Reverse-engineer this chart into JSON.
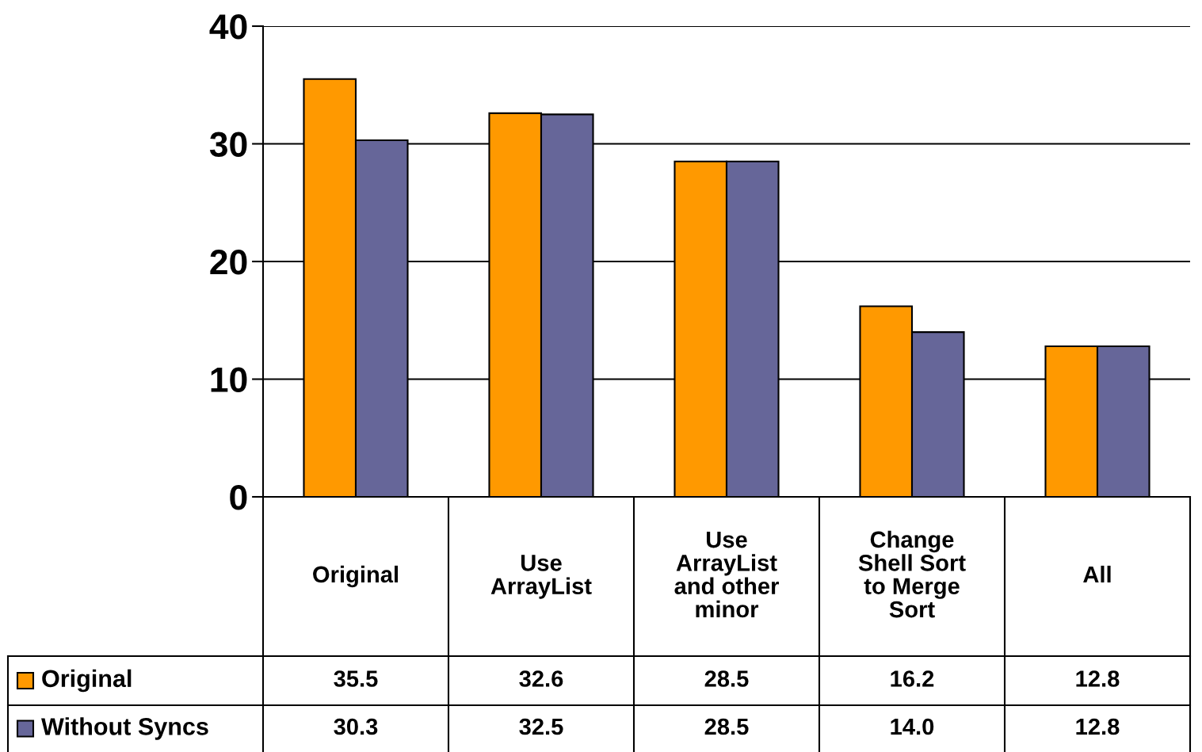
{
  "chart_data": {
    "type": "bar",
    "categories": [
      "Original",
      "Use ArrayList",
      "Use ArrayList and other minor",
      "Change Shell Sort to Merge Sort",
      "All"
    ],
    "series": [
      {
        "name": "Original",
        "color": "#ff9900",
        "values": [
          35.5,
          32.6,
          28.5,
          16.2,
          12.8
        ],
        "value_labels": [
          "35.5",
          "32.6",
          "28.5",
          "16.2",
          "12.8"
        ]
      },
      {
        "name": "Without Syncs",
        "color": "#666699",
        "values": [
          30.3,
          32.5,
          28.5,
          14.0,
          12.8
        ],
        "value_labels": [
          "30.3",
          "32.5",
          "28.5",
          "14.0",
          "12.8"
        ]
      }
    ],
    "ylim": [
      0,
      40
    ],
    "yticks": [
      0,
      10,
      20,
      30,
      40
    ],
    "grid": "y",
    "legend": "bottom left"
  }
}
